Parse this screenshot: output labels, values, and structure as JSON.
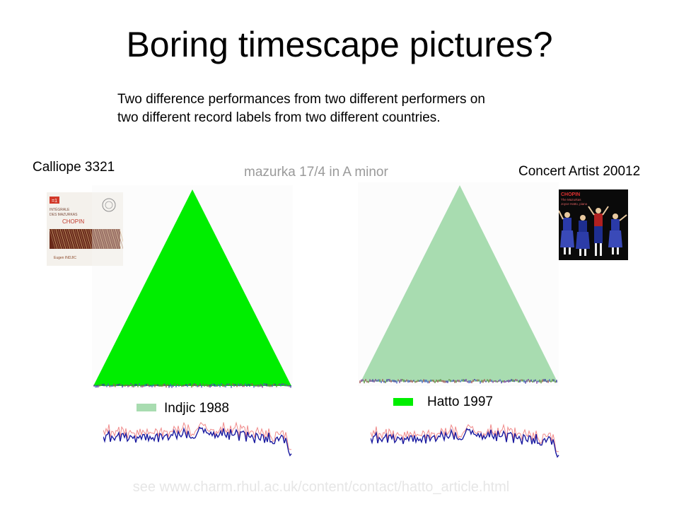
{
  "slide": {
    "title": "Boring timescape pictures?",
    "subtitle_line1": "Two difference performances from two different performers on",
    "subtitle_line2": "two different record labels from two different countries.",
    "piece": "mazurka 17/4 in A minor",
    "footer": "see www.charm.rhul.ac.uk/content/contact/hatto_article.html"
  },
  "left": {
    "label": "Calliope 3321",
    "legend": "Indjic 1988",
    "triangle_color": "#00ee00",
    "legend_color": "#a8dcb0",
    "cover": {
      "badge": "=1",
      "line1": "INTÉGRALE",
      "line2": "DES MAZURKAS",
      "line3": "CHOPIN",
      "performer": "Eugen INDJIC"
    }
  },
  "right": {
    "label": "Concert Artist 20012",
    "legend": "Hatto 1997",
    "triangle_color": "#a8dcb0",
    "legend_color": "#00ee00",
    "cover": {
      "line1": "CHOPIN",
      "line2": "The Mazurkas",
      "line3": "Joyce Hatto, piano"
    }
  },
  "colors": {
    "curve_primary": "#1a1aa0",
    "curve_secondary": "#f08a8a",
    "footer_text": "#e6e6e6",
    "piece_text": "#9a9a9a"
  }
}
